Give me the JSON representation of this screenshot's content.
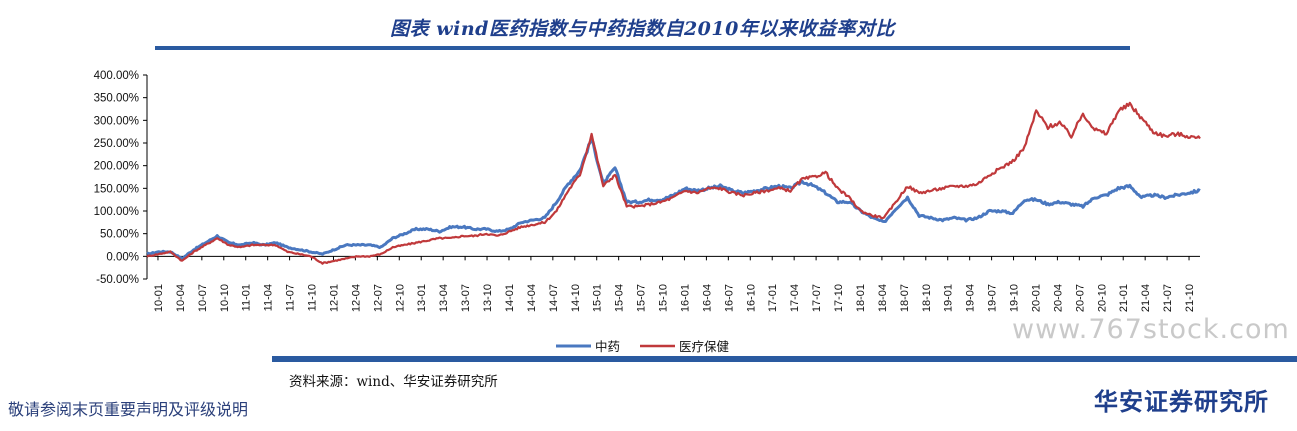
{
  "page": {
    "source_text": "资料来源：wind、华安证券研究所",
    "disclaimer": "敬请参阅末页重要声明及评级说明",
    "institute": "华安证券研究所",
    "watermark": "www.767stock.com"
  },
  "chart_data": {
    "type": "line",
    "title": "图表 wind医药指数与中药指数自2010年以来收益率对比",
    "xlabel": "",
    "ylabel": "",
    "ylim": [
      -0.5,
      4.0
    ],
    "y_ticks": [
      "400.00%",
      "350.00%",
      "300.00%",
      "250.00%",
      "200.00%",
      "150.00%",
      "100.00%",
      "50.00%",
      "0.00%",
      "-50.00%"
    ],
    "x_ticks": [
      "10-01",
      "10-04",
      "10-07",
      "10-10",
      "11-01",
      "11-04",
      "11-07",
      "11-10",
      "12-01",
      "12-04",
      "12-07",
      "12-10",
      "13-01",
      "13-04",
      "13-07",
      "13-10",
      "14-01",
      "14-04",
      "14-07",
      "14-10",
      "15-01",
      "15-04",
      "15-07",
      "15-10",
      "16-01",
      "16-04",
      "16-07",
      "16-10",
      "17-01",
      "17-04",
      "17-07",
      "17-10",
      "18-01",
      "18-04",
      "18-07",
      "18-10",
      "19-01",
      "19-04",
      "19-07",
      "19-10",
      "20-01",
      "20-04",
      "20-07",
      "20-10",
      "21-01",
      "21-04",
      "21-07",
      "21-10"
    ],
    "grid": false,
    "legend_position": "bottom",
    "colors": {
      "zhongyao": "#4a78c0",
      "yiliao": "#c0393b"
    },
    "series": [
      {
        "name": "中药",
        "values": [
          0.05,
          0.1,
          0.1,
          -0.05,
          0.15,
          0.3,
          0.45,
          0.3,
          0.25,
          0.3,
          0.25,
          0.3,
          0.2,
          0.15,
          0.1,
          0.05,
          0.15,
          0.25,
          0.25,
          0.25,
          0.2,
          0.4,
          0.5,
          0.6,
          0.6,
          0.55,
          0.65,
          0.65,
          0.6,
          0.6,
          0.55,
          0.6,
          0.75,
          0.8,
          0.85,
          1.2,
          1.6,
          1.9,
          2.6,
          1.6,
          1.95,
          1.2,
          1.2,
          1.25,
          1.25,
          1.35,
          1.5,
          1.45,
          1.5,
          1.55,
          1.45,
          1.4,
          1.45,
          1.5,
          1.55,
          1.5,
          1.65,
          1.55,
          1.4,
          1.2,
          1.2,
          1.0,
          0.85,
          0.75,
          1.05,
          1.3,
          0.9,
          0.85,
          0.8,
          0.85,
          0.8,
          0.85,
          1.0,
          1.0,
          0.95,
          1.25,
          1.25,
          1.15,
          1.2,
          1.15,
          1.1,
          1.3,
          1.35,
          1.5,
          1.55,
          1.3,
          1.35,
          1.3,
          1.35,
          1.4,
          1.45
        ]
      },
      {
        "name": "医疗保健",
        "values": [
          0.0,
          0.05,
          0.1,
          -0.1,
          0.1,
          0.25,
          0.4,
          0.25,
          0.2,
          0.25,
          0.25,
          0.25,
          0.1,
          0.05,
          0.0,
          -0.15,
          -0.1,
          -0.05,
          0.0,
          0.0,
          0.05,
          0.2,
          0.25,
          0.3,
          0.35,
          0.4,
          0.4,
          0.45,
          0.45,
          0.5,
          0.45,
          0.55,
          0.65,
          0.7,
          0.75,
          1.0,
          1.45,
          1.8,
          2.7,
          1.55,
          1.8,
          1.1,
          1.1,
          1.15,
          1.2,
          1.3,
          1.45,
          1.4,
          1.5,
          1.5,
          1.4,
          1.35,
          1.4,
          1.45,
          1.5,
          1.45,
          1.7,
          1.75,
          1.85,
          1.5,
          1.3,
          1.0,
          0.9,
          0.85,
          1.2,
          1.55,
          1.4,
          1.45,
          1.5,
          1.55,
          1.55,
          1.6,
          1.8,
          1.95,
          2.1,
          2.4,
          3.2,
          2.85,
          2.95,
          2.65,
          3.15,
          2.8,
          2.7,
          3.2,
          3.35,
          3.05,
          2.75,
          2.65,
          2.7,
          2.65,
          2.6
        ]
      }
    ]
  }
}
